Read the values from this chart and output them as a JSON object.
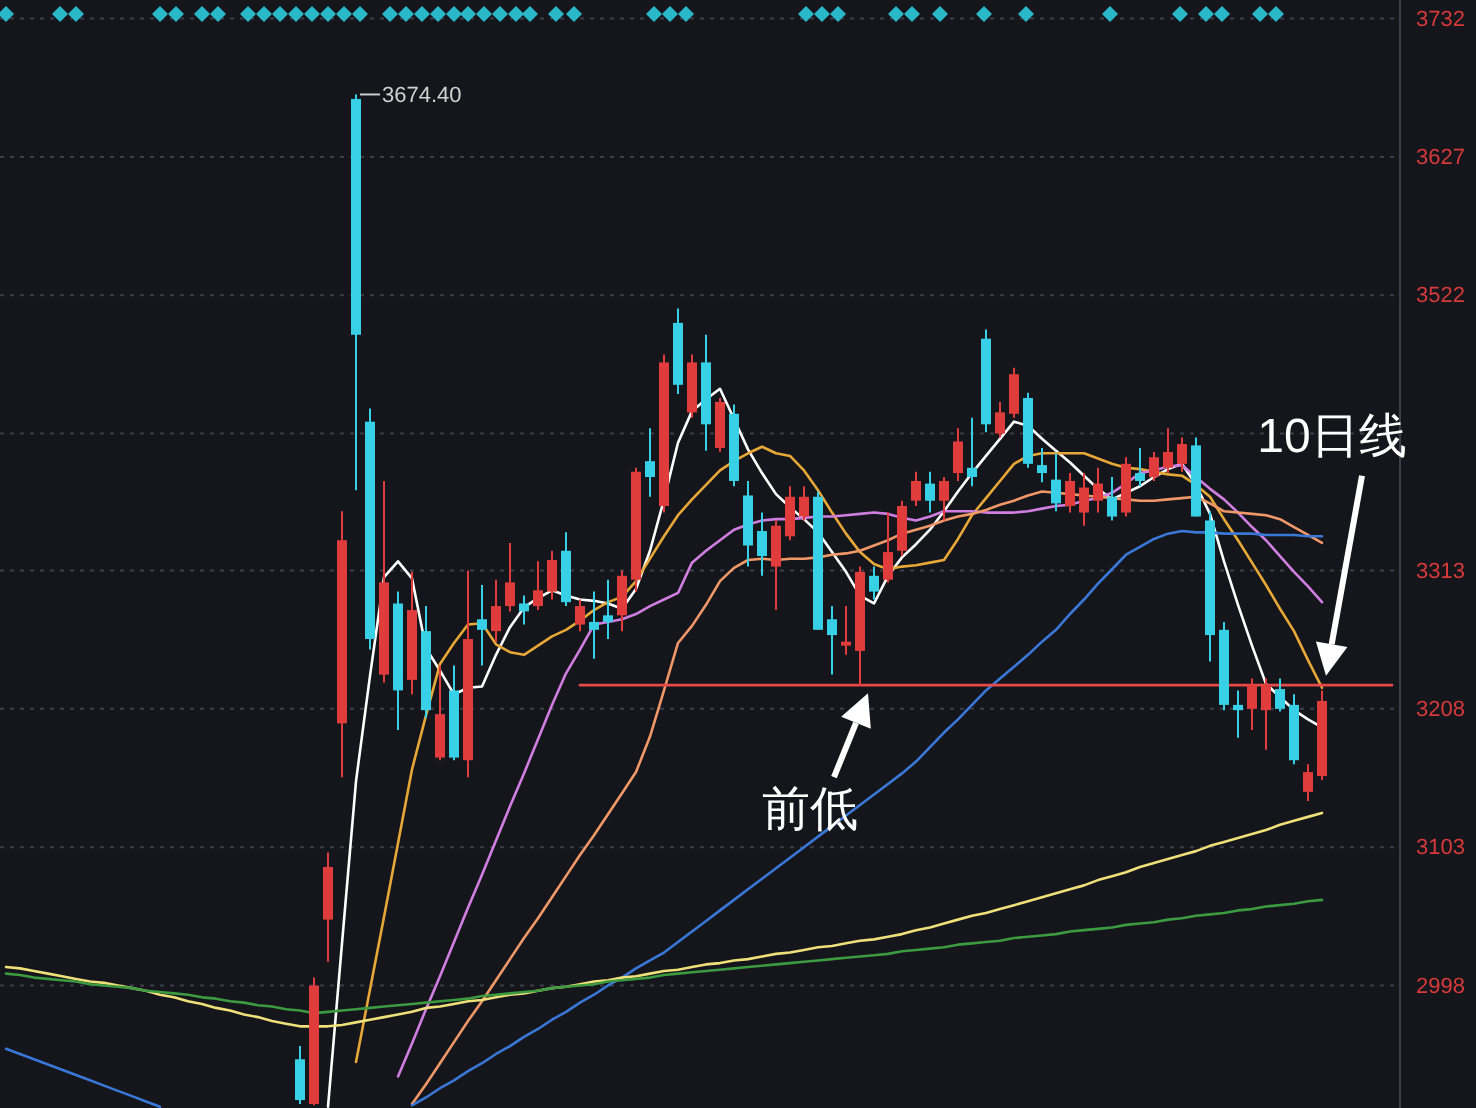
{
  "chart_data": {
    "type": "candlestick",
    "categories": [
      null,
      null,
      null,
      null,
      null,
      null,
      null,
      null,
      null,
      null,
      null,
      null,
      null,
      null,
      null,
      null,
      null,
      null,
      null,
      null,
      null,
      null,
      null,
      null,
      null,
      null,
      null,
      null,
      null,
      null,
      null,
      null,
      null,
      null,
      null,
      null,
      null,
      null,
      null,
      null,
      null,
      null,
      null,
      null,
      null,
      null,
      null,
      null,
      null,
      null,
      null,
      null,
      null,
      null,
      null,
      null,
      null,
      null,
      null,
      null,
      null,
      null,
      null,
      null,
      null,
      null,
      null,
      null,
      null,
      null,
      null,
      null,
      null,
      null,
      null,
      null,
      null,
      null,
      null,
      null,
      null,
      null,
      null,
      null,
      null,
      null,
      null,
      null,
      null,
      null,
      null,
      null,
      null,
      null,
      null,
      null,
      null,
      null,
      null,
      null
    ],
    "ohlc": [
      null,
      null,
      null,
      null,
      null,
      null,
      null,
      null,
      null,
      null,
      null,
      null,
      null,
      null,
      null,
      null,
      null,
      null,
      null,
      null,
      null,
      [
        2942,
        2952,
        2908,
        2911
      ],
      [
        2908,
        3004,
        2907,
        2998
      ],
      [
        3048,
        3099,
        3016,
        3088
      ],
      [
        3197,
        3358,
        3156,
        3336
      ],
      [
        3671,
        3674.4,
        3374,
        3492
      ],
      [
        3426,
        3436,
        3253,
        3261
      ],
      [
        3234,
        3381,
        3228,
        3304
      ],
      [
        3288,
        3297,
        3192,
        3222
      ],
      [
        3230,
        3312,
        3219,
        3283
      ],
      [
        3267,
        3286,
        3201,
        3207
      ],
      [
        3171,
        3241,
        3169,
        3204
      ],
      [
        3222,
        3241,
        3169,
        3171
      ],
      [
        3169,
        3313,
        3156,
        3261
      ],
      [
        3276,
        3302,
        3241,
        3268
      ],
      [
        3267,
        3306,
        3259,
        3286
      ],
      [
        3286,
        3334,
        3282,
        3304
      ],
      [
        3288,
        3294,
        3272,
        3282
      ],
      [
        3286,
        3320,
        3283,
        3298
      ],
      [
        3297,
        3328,
        3291,
        3321
      ],
      [
        3328,
        3342,
        3286,
        3289
      ],
      [
        3272,
        3291,
        3267,
        3286
      ],
      [
        3274,
        3297,
        3246,
        3268
      ],
      [
        3279,
        3306,
        3261,
        3274
      ],
      [
        3279,
        3313,
        3267,
        3309
      ],
      [
        3306,
        3391,
        3297,
        3388
      ],
      [
        3396,
        3421,
        3369,
        3384
      ],
      [
        3362,
        3477,
        3357,
        3471
      ],
      [
        3501,
        3512,
        3447,
        3454
      ],
      [
        3433,
        3477,
        3429,
        3471
      ],
      [
        3471,
        3492,
        3404,
        3424
      ],
      [
        3406,
        3444,
        3403,
        3441
      ],
      [
        3432,
        3439,
        3377,
        3381
      ],
      [
        3370,
        3381,
        3316,
        3332
      ],
      [
        3343,
        3357,
        3309,
        3324
      ],
      [
        3316,
        3351,
        3283,
        3347
      ],
      [
        3339,
        3377,
        3336,
        3369
      ],
      [
        3354,
        3377,
        3351,
        3369
      ],
      [
        3369,
        3373,
        3268,
        3268
      ],
      [
        3276,
        3286,
        3234,
        3264
      ],
      [
        3256,
        3286,
        3249,
        3259
      ],
      [
        3252,
        3316,
        3226,
        3312
      ],
      [
        3309,
        3316,
        3291,
        3297
      ],
      [
        3306,
        3357,
        3304,
        3327
      ],
      [
        3328,
        3366,
        3324,
        3362
      ],
      [
        3366,
        3388,
        3362,
        3381
      ],
      [
        3379,
        3388,
        3357,
        3366
      ],
      [
        3366,
        3384,
        3351,
        3381
      ],
      [
        3387,
        3421,
        3381,
        3411
      ],
      [
        3391,
        3429,
        3377,
        3384
      ],
      [
        3489,
        3496,
        3418,
        3424
      ],
      [
        3417,
        3441,
        3414,
        3433
      ],
      [
        3432,
        3467,
        3429,
        3462
      ],
      [
        3444,
        3448,
        3391,
        3394
      ],
      [
        3393,
        3406,
        3380,
        3387
      ],
      [
        3382,
        3402,
        3358,
        3364
      ],
      [
        3362,
        3387,
        3357,
        3381
      ],
      [
        3357,
        3387,
        3347,
        3376
      ],
      [
        3366,
        3391,
        3357,
        3379
      ],
      [
        3369,
        3384,
        3351,
        3354
      ],
      [
        3357,
        3399,
        3354,
        3394
      ],
      [
        3387,
        3406,
        3377,
        3381
      ],
      [
        3384,
        3403,
        3381,
        3399
      ],
      [
        3391,
        3421,
        3387,
        3403
      ],
      [
        3394,
        3414,
        3388,
        3409
      ],
      [
        3408,
        3414,
        3354,
        3354
      ],
      [
        3351,
        3358,
        3244,
        3264
      ],
      [
        3268,
        3274,
        3207,
        3211
      ],
      [
        3211,
        3222,
        3186,
        3207
      ],
      [
        3208,
        3231,
        3192,
        3226
      ],
      [
        3207,
        3231,
        3177,
        3226
      ],
      [
        3223,
        3231,
        3206,
        3208
      ],
      [
        3211,
        3219,
        3166,
        3169
      ],
      [
        3145,
        3166,
        3138,
        3160
      ],
      [
        3157,
        3222,
        3154,
        3214
      ],
      null,
      null,
      null,
      null,
      null
    ],
    "series": [
      {
        "type": "line",
        "color": "#ffffff",
        "values": [
          null,
          null,
          null,
          null,
          null,
          null,
          null,
          null,
          null,
          null,
          null,
          null,
          null,
          null,
          null,
          null,
          null,
          null,
          null,
          null,
          null,
          null,
          null,
          2906,
          3030,
          3153,
          3233,
          3308,
          3320,
          3307,
          3254,
          3237,
          3219,
          3224,
          3225,
          3249,
          3270,
          3285,
          3292,
          3298,
          3294,
          3291,
          3290,
          3288,
          3284,
          3299,
          3328,
          3367,
          3410,
          3434,
          3443,
          3451,
          3428,
          3405,
          3387,
          3371,
          3361,
          3352,
          3342,
          3327,
          3312,
          3294,
          3288,
          3309,
          3323,
          3333,
          3344,
          3358,
          3373,
          3387,
          3400,
          3413,
          3426,
          3423,
          3413,
          3404,
          3395,
          3385,
          3375,
          3367,
          3372,
          3377,
          3384,
          3390,
          3394,
          3378,
          3356,
          3320,
          3287,
          3256,
          3227,
          3217,
          3207,
          3200,
          3194,
          null,
          null,
          null,
          null,
          null
        ]
      },
      {
        "type": "line",
        "color": "#e8a838",
        "values": [
          null,
          null,
          null,
          null,
          null,
          null,
          null,
          null,
          null,
          null,
          null,
          null,
          null,
          null,
          null,
          null,
          null,
          null,
          null,
          null,
          null,
          null,
          null,
          null,
          null,
          2940,
          2995,
          3050,
          3106,
          3162,
          3203,
          3242,
          3258,
          3272,
          3273,
          3257,
          3251,
          3249,
          3256,
          3263,
          3268,
          3275,
          3283,
          3289,
          3293,
          3305,
          3322,
          3339,
          3355,
          3367,
          3378,
          3389,
          3396,
          3402,
          3407,
          3402,
          3400,
          3389,
          3374,
          3357,
          3341,
          3327,
          3318,
          3314,
          3316,
          3317,
          3319,
          3321,
          3337,
          3355,
          3368,
          3381,
          3394,
          3400,
          3402,
          3402,
          3402,
          3402,
          3398,
          3394,
          3391,
          3390,
          3388,
          3386,
          3385,
          3378,
          3369,
          3352,
          3336,
          3319,
          3302,
          3284,
          3267,
          3245,
          3224,
          null,
          null,
          null,
          null,
          null
        ]
      },
      {
        "type": "line",
        "color": "#d07ee0",
        "values": [
          null,
          null,
          null,
          null,
          null,
          null,
          null,
          null,
          null,
          null,
          null,
          null,
          null,
          null,
          null,
          null,
          null,
          null,
          null,
          null,
          null,
          null,
          null,
          null,
          null,
          null,
          null,
          null,
          2929,
          2954,
          2980,
          3005,
          3031,
          3057,
          3082,
          3108,
          3134,
          3159,
          3185,
          3211,
          3235,
          3253,
          3272,
          3274,
          3276,
          3280,
          3286,
          3291,
          3296,
          3319,
          3328,
          3336,
          3344,
          3348,
          3351,
          3352,
          3352,
          3353,
          3354,
          3354,
          3355,
          3356,
          3357,
          3356,
          3353,
          3351,
          3354,
          3358,
          3358,
          3358,
          3357,
          3357,
          3357,
          3358,
          3360,
          3362,
          3363,
          3366,
          3368,
          3372,
          3379,
          3387,
          3389,
          3392,
          3393,
          3384,
          3375,
          3367,
          3357,
          3346,
          3336,
          3324,
          3312,
          3301,
          3289,
          null,
          null,
          null,
          null,
          null
        ]
      },
      {
        "type": "line",
        "color": "#f09868",
        "values": [
          null,
          null,
          null,
          null,
          null,
          null,
          null,
          null,
          null,
          null,
          null,
          null,
          null,
          null,
          null,
          null,
          null,
          null,
          null,
          null,
          null,
          null,
          null,
          null,
          null,
          null,
          null,
          null,
          null,
          2908,
          2923,
          2939,
          2955,
          2971,
          2986,
          3002,
          3018,
          3034,
          3049,
          3065,
          3081,
          3097,
          3112,
          3128,
          3144,
          3160,
          3187,
          3222,
          3258,
          3271,
          3287,
          3305,
          3315,
          3321,
          3322,
          3321,
          3322,
          3322,
          3323,
          3325,
          3326,
          3328,
          3332,
          3336,
          3341,
          3344,
          3347,
          3351,
          3354,
          3356,
          3359,
          3363,
          3366,
          3370,
          3373,
          3372,
          3371,
          3370,
          3369,
          3368,
          3367,
          3366,
          3366,
          3367,
          3368,
          3369,
          3364,
          3358,
          3357,
          3356,
          3355,
          3352,
          3346,
          3340,
          3334,
          null,
          null,
          null,
          null,
          null
        ]
      },
      {
        "type": "line",
        "color": "#3a78d8",
        "values": [
          2950,
          2946,
          2942,
          2938,
          2934,
          2930,
          2926,
          2922,
          2918,
          2914,
          2910,
          2906,
          null,
          null,
          null,
          null,
          null,
          null,
          null,
          null,
          null,
          null,
          null,
          null,
          null,
          null,
          null,
          null,
          null,
          2907,
          2913,
          2920,
          2926,
          2933,
          2939,
          2946,
          2952,
          2959,
          2965,
          2972,
          2978,
          2985,
          2991,
          2998,
          3004,
          3011,
          3017,
          3023,
          3031,
          3039,
          3047,
          3055,
          3063,
          3071,
          3079,
          3087,
          3095,
          3103,
          3111,
          3119,
          3127,
          3135,
          3143,
          3151,
          3159,
          3168,
          3179,
          3190,
          3200,
          3211,
          3222,
          3231,
          3240,
          3249,
          3259,
          3268,
          3280,
          3291,
          3303,
          3314,
          3325,
          3331,
          3337,
          3341,
          3343,
          3342,
          3342,
          3341,
          3341,
          3341,
          3340,
          3340,
          3340,
          3339,
          3339,
          null,
          null,
          null,
          null,
          null
        ]
      },
      {
        "type": "line",
        "color": "#f0e07a",
        "values": [
          3012,
          3011,
          3009,
          3007,
          3005,
          3003,
          3001,
          3000,
          2998,
          2996,
          2994,
          2991,
          2989,
          2986,
          2984,
          2981,
          2979,
          2976,
          2974,
          2971,
          2969,
          2967,
          2967,
          2967,
          2968,
          2970,
          2972,
          2974,
          2976,
          2978,
          2981,
          2982,
          2984,
          2986,
          2987,
          2989,
          2991,
          2992,
          2994,
          2996,
          2997,
          2999,
          3001,
          3002,
          3004,
          3005,
          3007,
          3009,
          3010,
          3012,
          3014,
          3015,
          3017,
          3018,
          3020,
          3022,
          3023,
          3025,
          3027,
          3028,
          3030,
          3032,
          3033,
          3035,
          3037,
          3040,
          3042,
          3045,
          3048,
          3051,
          3053,
          3056,
          3059,
          3062,
          3065,
          3068,
          3071,
          3074,
          3078,
          3081,
          3084,
          3088,
          3091,
          3094,
          3097,
          3100,
          3104,
          3107,
          3110,
          3113,
          3116,
          3120,
          3123,
          3126,
          3129,
          null,
          null,
          null,
          null,
          null
        ]
      },
      {
        "type": "line",
        "color": "#3c9a40",
        "values": [
          3007,
          3006,
          3004,
          3003,
          3002,
          3001,
          2999,
          2998,
          2997,
          2996,
          2994,
          2993,
          2992,
          2991,
          2989,
          2988,
          2986,
          2985,
          2983,
          2982,
          2980,
          2979,
          2977,
          2978,
          2979,
          2980,
          2981,
          2982,
          2983,
          2984,
          2985,
          2986,
          2987,
          2988,
          2990,
          2991,
          2992,
          2993,
          2994,
          2996,
          2997,
          2998,
          2999,
          3001,
          3002,
          3003,
          3004,
          3006,
          3007,
          3008,
          3009,
          3010,
          3011,
          3012,
          3013,
          3014,
          3015,
          3016,
          3017,
          3018,
          3019,
          3020,
          3021,
          3022,
          3024,
          3025,
          3026,
          3027,
          3029,
          3030,
          3031,
          3032,
          3034,
          3035,
          3036,
          3037,
          3039,
          3040,
          3041,
          3042,
          3044,
          3045,
          3046,
          3048,
          3049,
          3051,
          3052,
          3053,
          3055,
          3056,
          3058,
          3059,
          3060,
          3062,
          3063,
          null,
          null,
          null,
          null,
          null
        ]
      },
      {
        "type": "line",
        "color": "#e84848",
        "values": [
          null,
          null,
          null,
          null,
          null,
          null,
          null,
          null,
          null,
          null,
          null,
          null,
          null,
          null,
          null,
          null,
          null,
          null,
          null,
          null,
          null,
          null,
          null,
          null,
          null,
          null,
          null,
          null,
          null,
          null,
          null,
          null,
          null,
          null,
          null,
          null,
          null,
          null,
          null,
          null,
          null,
          3226,
          3226,
          3226,
          3226,
          3226,
          3226,
          3226,
          3226,
          3226,
          3226,
          3226,
          3226,
          3226,
          3226,
          3226,
          3226,
          3226,
          3226,
          3226,
          3226,
          3226,
          3226,
          3226,
          3226,
          3226,
          3226,
          3226,
          3226,
          3226,
          3226,
          3226,
          3226,
          3226,
          3226,
          3226,
          3226,
          3226,
          3226,
          3226,
          3226,
          3226,
          3226,
          3226,
          3226,
          3226,
          3226,
          3226,
          3226,
          3226,
          3226,
          3226,
          3226,
          3226,
          3226,
          3226,
          3226,
          3226,
          3226,
          3226
        ]
      }
    ],
    "ylim": [
      2905,
      3737
    ],
    "yticks": [
      2998,
      3103,
      3208,
      3313,
      {
        "value": 3417,
        "label": null
      },
      3522,
      3627,
      3732
    ],
    "tick_labels": "y",
    "grid": "y",
    "annotations": [
      "3674.40",
      {
        "text": "前低",
        "y": 3226
      },
      "10日线"
    ]
  }
}
